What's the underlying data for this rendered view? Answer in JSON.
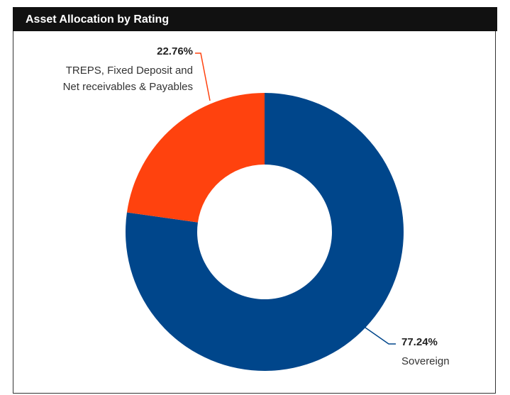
{
  "chart_data": {
    "type": "pie",
    "title": "Asset Allocation by Rating",
    "donut": true,
    "categories": [
      "Sovereign",
      "TREPS, Fixed Deposit and Net receivables & Payables"
    ],
    "values": [
      77.24,
      22.76
    ],
    "value_labels": [
      "77.24%",
      "22.76%"
    ],
    "colors": [
      "#00468b",
      "#ff420e"
    ]
  }
}
